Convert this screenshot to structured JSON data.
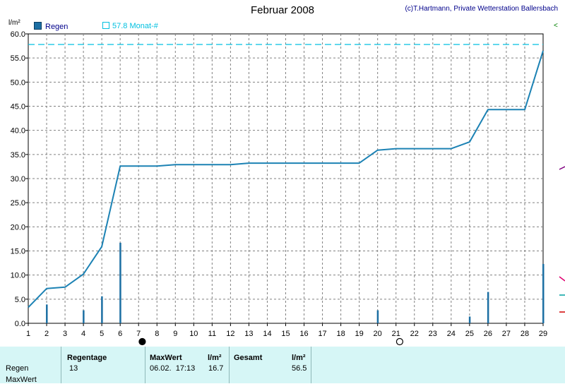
{
  "title": "Februar 2008",
  "copyright": "(c)T.Hartmann, Private Wetterstation Ballersbach",
  "unit": "l/m²",
  "legend": {
    "rain": "Regen",
    "month": "57.8 Monat-#"
  },
  "right_mark": "<",
  "chart_data": {
    "type": "bar",
    "title": "Februar 2008",
    "ylabel": "l/m²",
    "xlim": [
      1,
      29
    ],
    "ylim": [
      0,
      60
    ],
    "x_ticks": [
      "1",
      "2",
      "3",
      "4",
      "5",
      "6",
      "7",
      "8",
      "9",
      "10",
      "11",
      "12",
      "13",
      "14",
      "15",
      "16",
      "17",
      "18",
      "19",
      "20",
      "21",
      "22",
      "23",
      "24",
      "25",
      "26",
      "27",
      "28",
      "29"
    ],
    "y_ticks": [
      "0.0",
      "5.0",
      "10.0",
      "15.0",
      "20.0",
      "25.0",
      "30.0",
      "35.0",
      "40.0",
      "45.0",
      "50.0",
      "55.0",
      "60.0"
    ],
    "grid": true,
    "series": [
      {
        "name": "Regen",
        "type": "bar",
        "points": [
          {
            "x": 2,
            "y": 3.9
          },
          {
            "x": 4,
            "y": 2.7
          },
          {
            "x": 5,
            "y": 5.6
          },
          {
            "x": 6,
            "y": 16.7
          },
          {
            "x": 20,
            "y": 2.7
          },
          {
            "x": 25,
            "y": 1.4
          },
          {
            "x": 26,
            "y": 6.5
          },
          {
            "x": 29,
            "y": 12.3
          }
        ]
      },
      {
        "type": "line",
        "points": [
          {
            "x": 1,
            "y": 3.3
          },
          {
            "x": 2,
            "y": 7.2
          },
          {
            "x": 3,
            "y": 7.5
          },
          {
            "x": 4,
            "y": 10.2
          },
          {
            "x": 5,
            "y": 15.9
          },
          {
            "x": 6,
            "y": 32.6
          },
          {
            "x": 8,
            "y": 32.6
          },
          {
            "x": 9,
            "y": 32.9
          },
          {
            "x": 12,
            "y": 32.9
          },
          {
            "x": 13,
            "y": 33.2
          },
          {
            "x": 19,
            "y": 33.2
          },
          {
            "x": 20,
            "y": 35.9
          },
          {
            "x": 21,
            "y": 36.2
          },
          {
            "x": 24,
            "y": 36.2
          },
          {
            "x": 25,
            "y": 37.6
          },
          {
            "x": 26,
            "y": 44.3
          },
          {
            "x": 28,
            "y": 44.3
          },
          {
            "x": 29,
            "y": 56.5
          }
        ]
      }
    ],
    "month_reference": 57.8,
    "moon_phases": [
      {
        "x": 7.2,
        "phase": "new"
      },
      {
        "x": 21.2,
        "phase": "full"
      }
    ]
  },
  "colors": {
    "bar": "#1c6fa3",
    "line": "#1c82b4",
    "reference": "#00c0e0",
    "grid": "#808080",
    "panel": "#d6f6f6"
  },
  "stats": {
    "row_labels": [
      "Regen",
      "MaxWert"
    ],
    "regentage": {
      "header": "Regentage",
      "value": "13"
    },
    "maxwert": {
      "header": "MaxWert",
      "unit": "l/m²",
      "datetime": "06.02.  17:13",
      "value": "16.7"
    },
    "gesamt": {
      "header": "Gesamt",
      "unit": "l/m²",
      "value": "56.5"
    }
  }
}
